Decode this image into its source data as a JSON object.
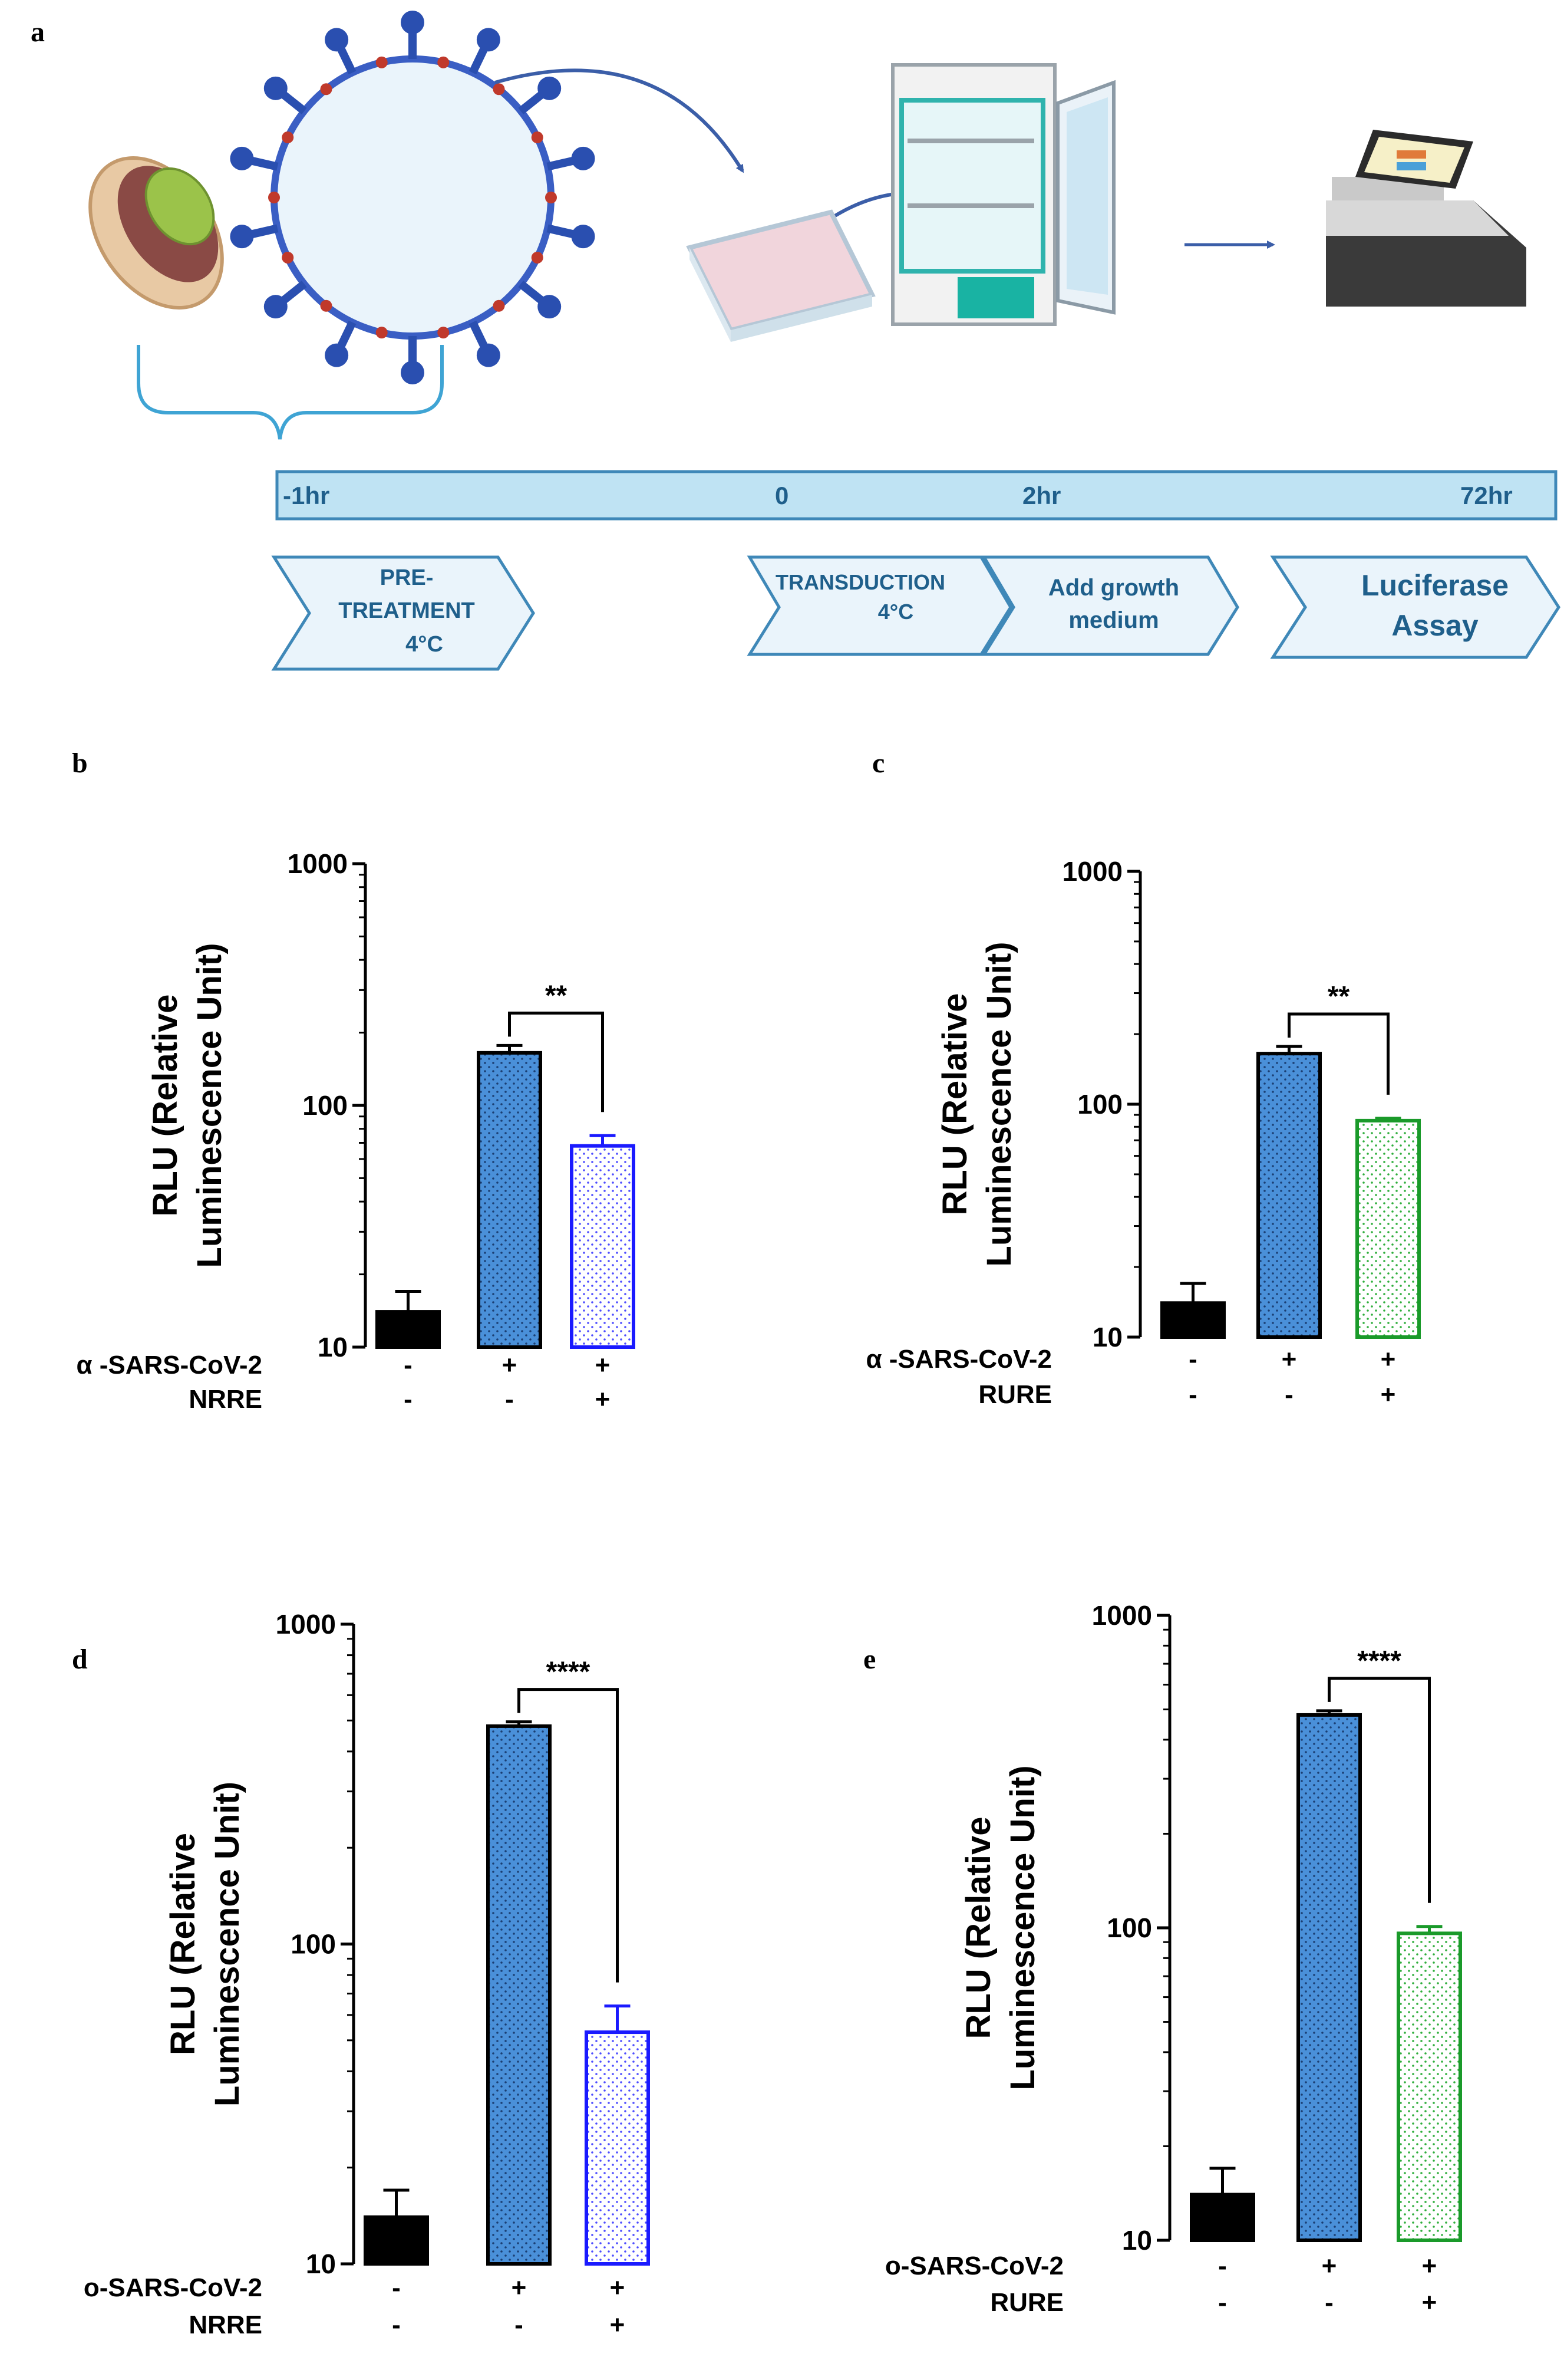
{
  "panel_a": {
    "label": "a",
    "timeline": [
      "-1hr",
      "0",
      "2hr",
      "72hr"
    ],
    "steps": [
      {
        "lines": [
          "PRE-",
          "TREATMENT",
          "4°C"
        ]
      },
      {
        "lines": [
          "TRANSDUCTION",
          "4°C"
        ]
      },
      {
        "lines": [
          "Add growth",
          "medium"
        ]
      },
      {
        "lines": [
          "Luciferase",
          "Assay"
        ]
      }
    ],
    "icons": [
      "pistachio-icon",
      "virus-icon",
      "well-plate-icon",
      "incubator-icon",
      "plate-reader-icon"
    ],
    "colors": {
      "bar": "#bfe3f3",
      "border": "#3f88b8",
      "arrow": "#3b5ea8",
      "text": "#1f5f8b"
    }
  },
  "chart_data": [
    {
      "type": "bar",
      "label": "b",
      "ylabel": [
        "RLU (Relative",
        "Luminescence Unit)"
      ],
      "yscale": "log",
      "ylim": [
        10,
        1000
      ],
      "yticks": [
        "10",
        "100",
        "1000"
      ],
      "categories": [
        "1",
        "2",
        "3"
      ],
      "values": [
        14,
        165,
        68
      ],
      "errors": [
        3,
        12,
        7
      ],
      "fills": [
        "#000000",
        "#4a90d9",
        "#ffffff"
      ],
      "edges": [
        "#000000",
        "#000000",
        "#1a1aff"
      ],
      "significance": {
        "from": 1,
        "to": 2,
        "label": "**"
      },
      "rows": [
        {
          "label": "α -SARS-CoV-2",
          "signs": [
            "-",
            "+",
            "+"
          ]
        },
        {
          "label": "NRRE",
          "signs": [
            "-",
            "-",
            "+"
          ]
        }
      ]
    },
    {
      "type": "bar",
      "label": "c",
      "ylabel": [
        "RLU (Relative",
        "Luminescence Unit)"
      ],
      "yscale": "log",
      "ylim": [
        10,
        1000
      ],
      "yticks": [
        "10",
        "100",
        "1000"
      ],
      "categories": [
        "1",
        "2",
        "3"
      ],
      "values": [
        14,
        165,
        85
      ],
      "errors": [
        3,
        12,
        2
      ],
      "fills": [
        "#000000",
        "#4a90d9",
        "#ffffff"
      ],
      "edges": [
        "#000000",
        "#000000",
        "#1a9a2a"
      ],
      "significance": {
        "from": 1,
        "to": 2,
        "label": "**"
      },
      "rows": [
        {
          "label": "α -SARS-CoV-2",
          "signs": [
            "-",
            "+",
            "+"
          ]
        },
        {
          "label": "RURE",
          "signs": [
            "-",
            "-",
            "+"
          ]
        }
      ]
    },
    {
      "type": "bar",
      "label": "d",
      "ylabel": [
        "RLU (Relative",
        "Luminescence Unit)"
      ],
      "yscale": "log",
      "ylim": [
        10,
        1000
      ],
      "yticks": [
        "10",
        "100",
        "1000"
      ],
      "categories": [
        "1",
        "2",
        "3"
      ],
      "values": [
        14,
        480,
        53
      ],
      "errors": [
        3,
        15,
        11
      ],
      "fills": [
        "#000000",
        "#4a90d9",
        "#ffffff"
      ],
      "edges": [
        "#000000",
        "#000000",
        "#1a1aff"
      ],
      "significance": {
        "from": 1,
        "to": 2,
        "label": "****"
      },
      "rows": [
        {
          "label": "ο-SARS-CoV-2",
          "signs": [
            "-",
            "+",
            "+"
          ]
        },
        {
          "label": "NRRE",
          "signs": [
            "-",
            "-",
            "+"
          ]
        }
      ]
    },
    {
      "type": "bar",
      "label": "e",
      "ylabel": [
        "RLU (Relative",
        "Luminescence Unit)"
      ],
      "yscale": "log",
      "ylim": [
        10,
        1000
      ],
      "yticks": [
        "10",
        "100",
        "1000"
      ],
      "categories": [
        "1",
        "2",
        "3"
      ],
      "values": [
        14,
        480,
        96
      ],
      "errors": [
        3,
        15,
        5
      ],
      "fills": [
        "#000000",
        "#4a90d9",
        "#ffffff"
      ],
      "edges": [
        "#000000",
        "#000000",
        "#1a9a2a"
      ],
      "significance": {
        "from": 1,
        "to": 2,
        "label": "****"
      },
      "rows": [
        {
          "label": "ο-SARS-CoV-2",
          "signs": [
            "-",
            "+",
            "+"
          ]
        },
        {
          "label": "RURE",
          "signs": [
            "-",
            "-",
            "+"
          ]
        }
      ]
    }
  ]
}
